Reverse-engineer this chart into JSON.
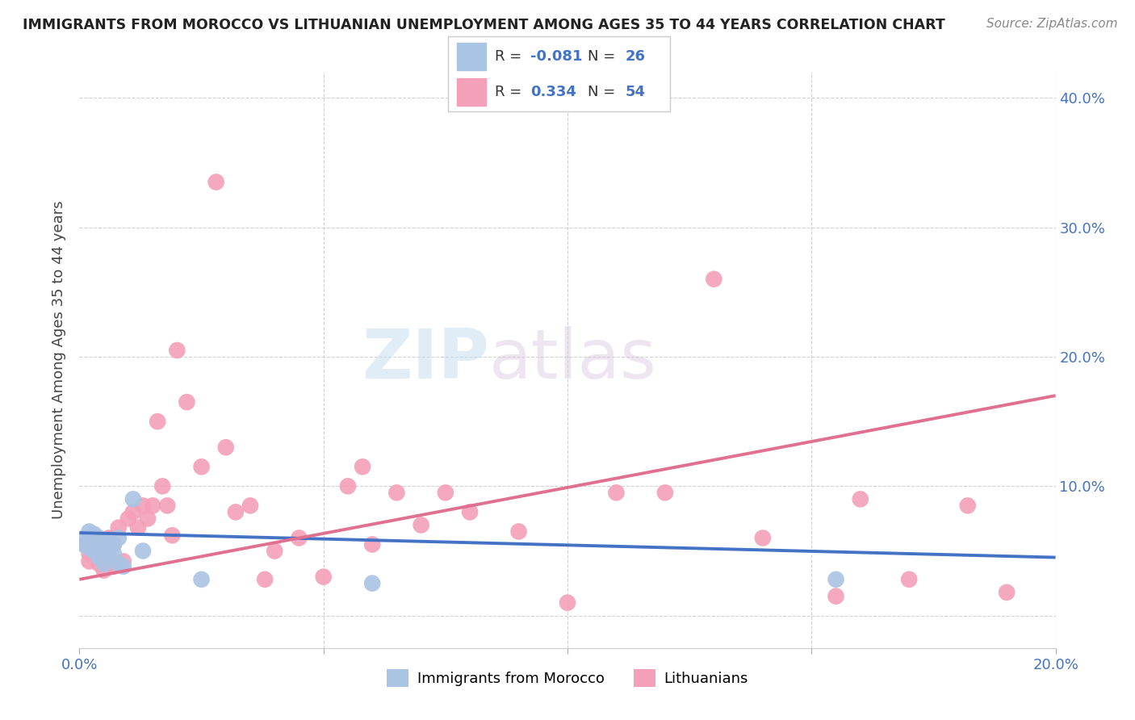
{
  "title": "IMMIGRANTS FROM MOROCCO VS LITHUANIAN UNEMPLOYMENT AMONG AGES 35 TO 44 YEARS CORRELATION CHART",
  "source": "Source: ZipAtlas.com",
  "ylabel": "Unemployment Among Ages 35 to 44 years",
  "xlim": [
    0.0,
    0.2
  ],
  "ylim": [
    -0.025,
    0.42
  ],
  "blue_color": "#aac4e4",
  "blue_line_color": "#4472c4",
  "pink_color": "#f4a0b8",
  "pink_line_color": "#e07090",
  "watermark_zip": "ZIP",
  "watermark_atlas": "atlas",
  "blue_scatter_x": [
    0.001,
    0.001,
    0.002,
    0.002,
    0.002,
    0.003,
    0.003,
    0.003,
    0.004,
    0.004,
    0.004,
    0.005,
    0.005,
    0.005,
    0.006,
    0.006,
    0.007,
    0.007,
    0.008,
    0.008,
    0.009,
    0.011,
    0.013,
    0.025,
    0.06,
    0.155
  ],
  "blue_scatter_y": [
    0.06,
    0.055,
    0.065,
    0.058,
    0.052,
    0.063,
    0.057,
    0.05,
    0.06,
    0.055,
    0.045,
    0.058,
    0.05,
    0.04,
    0.055,
    0.045,
    0.055,
    0.048,
    0.06,
    0.04,
    0.038,
    0.09,
    0.05,
    0.028,
    0.025,
    0.028
  ],
  "pink_scatter_x": [
    0.001,
    0.002,
    0.002,
    0.003,
    0.003,
    0.004,
    0.004,
    0.005,
    0.005,
    0.006,
    0.006,
    0.007,
    0.007,
    0.008,
    0.009,
    0.01,
    0.011,
    0.012,
    0.013,
    0.014,
    0.015,
    0.016,
    0.017,
    0.018,
    0.019,
    0.02,
    0.022,
    0.025,
    0.028,
    0.03,
    0.032,
    0.035,
    0.038,
    0.04,
    0.045,
    0.05,
    0.055,
    0.058,
    0.06,
    0.065,
    0.07,
    0.075,
    0.08,
    0.09,
    0.1,
    0.11,
    0.12,
    0.13,
    0.14,
    0.155,
    0.16,
    0.17,
    0.182,
    0.19
  ],
  "pink_scatter_y": [
    0.055,
    0.048,
    0.042,
    0.06,
    0.052,
    0.058,
    0.04,
    0.052,
    0.035,
    0.06,
    0.045,
    0.055,
    0.038,
    0.068,
    0.042,
    0.075,
    0.08,
    0.068,
    0.085,
    0.075,
    0.085,
    0.15,
    0.1,
    0.085,
    0.062,
    0.205,
    0.165,
    0.115,
    0.335,
    0.13,
    0.08,
    0.085,
    0.028,
    0.05,
    0.06,
    0.03,
    0.1,
    0.115,
    0.055,
    0.095,
    0.07,
    0.095,
    0.08,
    0.065,
    0.01,
    0.095,
    0.095,
    0.26,
    0.06,
    0.015,
    0.09,
    0.028,
    0.085,
    0.018
  ],
  "blue_line_x": [
    0.0,
    0.2
  ],
  "blue_line_y": [
    0.064,
    0.045
  ],
  "pink_line_x": [
    0.0,
    0.2
  ],
  "pink_line_y": [
    0.028,
    0.17
  ]
}
